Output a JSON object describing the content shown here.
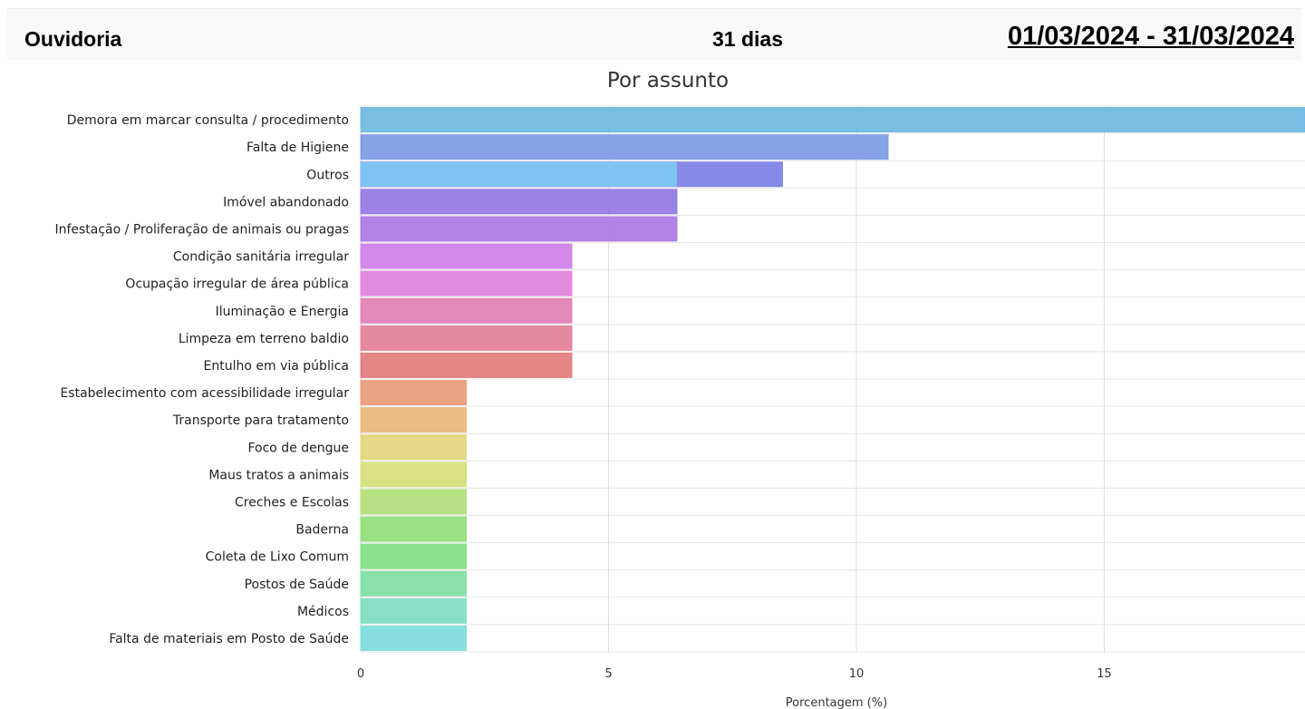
{
  "header": {
    "title": "Ouvidoria",
    "days": "31 dias",
    "date_range": "01/03/2024 - 31/03/2024"
  },
  "chart_data": {
    "type": "bar",
    "orientation": "horizontal",
    "title": "Por assunto",
    "xlabel": "Porcentagem (%)",
    "ylabel": "",
    "xlim": [
      0,
      19
    ],
    "xticks": [
      0,
      5,
      10,
      15
    ],
    "grid": true,
    "categories": [
      "Demora em marcar consulta / procedimento",
      "Falta de Higiene",
      "Outros",
      "Imóvel abandonado",
      "Infestação / Proliferação de animais ou pragas",
      "Condição sanitária irregular",
      "Ocupação irregular de área pública",
      "Iluminação e Energia",
      "Limpeza em terreno baldio",
      "Entulho em via pública",
      "Estabelecimento com acessibilidade irregular",
      "Transporte para tratamento",
      "Foco de dengue",
      "Maus tratos a animais",
      "Creches e Escolas",
      "Baderna",
      "Coleta de Lixo Comum",
      "Postos de Saúde",
      "Médicos",
      "Falta de materiais em Posto de Saúde"
    ],
    "values": [
      19.1,
      10.64,
      8.51,
      6.38,
      6.38,
      4.26,
      4.26,
      4.26,
      4.26,
      4.26,
      2.13,
      2.13,
      2.13,
      2.13,
      2.13,
      2.13,
      2.13,
      2.13,
      2.13,
      2.13
    ],
    "colors": [
      "#6db9e0",
      "#7b9be3",
      "#7c7fe4",
      "#9178e3",
      "#ad79e5",
      "#d07ee6",
      "#e082dc",
      "#e27fb6",
      "#e27f98",
      "#e07c7c",
      "#e89a78",
      "#e8b87a",
      "#e2d57a",
      "#d5e07a",
      "#b0e07a",
      "#90de7a",
      "#7ede82",
      "#7edea0",
      "#7edec0",
      "#7edcdc"
    ],
    "overlay": {
      "category": "Outros",
      "value": 6.38,
      "color": "#7ec4f2"
    }
  }
}
